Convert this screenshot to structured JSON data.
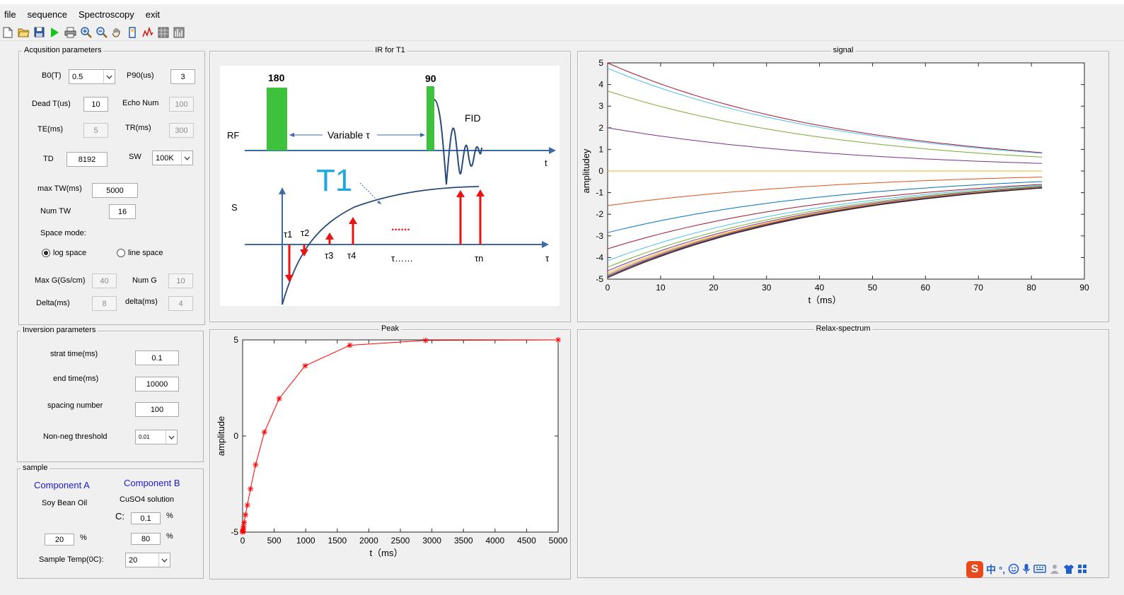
{
  "window": {
    "title": ""
  },
  "menu": [
    "file",
    "sequence",
    "Spectroscopy",
    "exit"
  ],
  "toolbar": [
    "new-icon",
    "open-icon",
    "save-icon",
    "run-icon",
    "print-icon",
    "zoom-in-icon",
    "zoom-out-icon",
    "pan-icon",
    "datacursor-icon",
    "peak-icon",
    "grid-icon",
    "spectrum-icon"
  ],
  "acq": {
    "title": "Acqusition parameters",
    "b0_label": "B0(T)",
    "b0_value": "0.5",
    "p90_label": "P90(us)",
    "p90_value": "3",
    "dead_label": "Dead T(us)",
    "dead_value": "10",
    "echo_label": "Echo Num",
    "echo_value": "100",
    "te_label": "TE(ms)",
    "te_value": "5",
    "tr_label": "TR(ms)",
    "tr_value": "300",
    "td_label": "TD",
    "td_value": "8192",
    "sw_label": "SW",
    "sw_value": "100K",
    "maxtw_label": "max TW(ms)",
    "maxtw_value": "5000",
    "numtw_label": "Num TW",
    "numtw_value": "16",
    "space_label": "Space mode:",
    "log_label": "log space",
    "line_label": "line space",
    "maxg_label": "Max G(Gs/cm)",
    "maxg_value": "40",
    "numg_label": "Num G",
    "numg_value": "10",
    "Delta_label": "Delta(ms)",
    "Delta_value": "8",
    "delta_label": "delta(ms)",
    "delta_value": "4"
  },
  "inv": {
    "title": "Inversion parameters",
    "start_label": "strat time(ms)",
    "start_value": "0.1",
    "end_label": "end time(ms)",
    "end_value": "10000",
    "spacing_label": "spacing number",
    "spacing_value": "100",
    "thresh_label": "Non-neg threshold",
    "thresh_value": "0.01"
  },
  "sample": {
    "title": "sample",
    "compA": "Component A",
    "compB": "Component B",
    "nameA": "Soy Bean Oil",
    "nameB": "CuSO4 solution",
    "c_label": "C:",
    "c_value": "0.1",
    "c_unit": "%",
    "pctA_value": "20",
    "pctA_unit": "%",
    "pctB_value": "80",
    "pctB_unit": "%",
    "temp_label": "Sample Temp(0C):",
    "temp_value": "20"
  },
  "diagram": {
    "title": "IR for T1",
    "p180": "180",
    "p90": "90",
    "rf": "RF",
    "variable": "Variable τ",
    "fid": "FID",
    "t_axis": "t",
    "s_label": "S",
    "t1": "T1",
    "tau1": "τ1",
    "tau2": "τ2",
    "tau3": "τ3",
    "tau4": "τ4",
    "tau_dots": "τ……",
    "tau_n": "τn",
    "tau_axis": "τ",
    "dots": "......",
    "colors": {
      "pulse": "#3ec23e",
      "axis": "#3d6aa3",
      "arrow": "#ee1111",
      "t1": "#1ea7e0",
      "dots": "#ee1111"
    }
  },
  "signal": {
    "title": "signal",
    "chart_data": {
      "type": "line",
      "title": "",
      "xlabel": "t（ms）",
      "ylabel": "amplitudey",
      "xlim": [
        0,
        90
      ],
      "ylim": [
        -5,
        5
      ],
      "xticks": [
        0,
        10,
        20,
        30,
        40,
        50,
        60,
        70,
        80,
        90
      ],
      "yticks": [
        -5,
        -4,
        -3,
        -2,
        -1,
        0,
        1,
        2,
        3,
        4,
        5
      ],
      "x_range": [
        0,
        82
      ],
      "series": [
        {
          "y0": 5,
          "y_end": 0.85,
          "color": "#a2142f"
        },
        {
          "y0": 4.75,
          "y_end": 0.82,
          "color": "#4dbeee"
        },
        {
          "y0": 3.7,
          "y_end": 0.64,
          "color": "#77ac30"
        },
        {
          "y0": 2.0,
          "y_end": 0.35,
          "color": "#7e2f8e"
        },
        {
          "y0": 0.0,
          "y_end": 0.0,
          "color": "#edb120"
        },
        {
          "y0": -1.6,
          "y_end": -0.28,
          "color": "#d95319"
        },
        {
          "y0": -2.85,
          "y_end": -0.49,
          "color": "#0072bd"
        },
        {
          "y0": -3.6,
          "y_end": -0.62,
          "color": "#a2142f"
        },
        {
          "y0": -4.15,
          "y_end": -0.66,
          "color": "#4dbeee"
        },
        {
          "y0": -4.45,
          "y_end": -0.7,
          "color": "#77ac30"
        },
        {
          "y0": -4.62,
          "y_end": -0.73,
          "color": "#7e2f8e"
        },
        {
          "y0": -4.72,
          "y_end": -0.75,
          "color": "#edb120"
        },
        {
          "y0": -4.8,
          "y_end": -0.76,
          "color": "#d95319"
        },
        {
          "y0": -4.86,
          "y_end": -0.77,
          "color": "#0072bd"
        },
        {
          "y0": -4.9,
          "y_end": -0.78,
          "color": "#a2142f"
        },
        {
          "y0": -4.94,
          "y_end": -0.79,
          "color": "#222222"
        }
      ]
    }
  },
  "peak": {
    "title": "Peak",
    "chart_data": {
      "type": "line",
      "title": "",
      "xlabel": "t（ms）",
      "ylabel": "amplitude",
      "xlim": [
        0,
        5000
      ],
      "ylim": [
        -5,
        5
      ],
      "xticks": [
        0,
        500,
        1000,
        1500,
        2000,
        2500,
        3000,
        3500,
        4000,
        4500,
        5000
      ],
      "yticks": [
        -5,
        0,
        5
      ],
      "color": "#ff0000",
      "x": [
        1,
        3,
        5,
        9,
        15,
        25,
        45,
        75,
        125,
        205,
        345,
        580,
        990,
        1700,
        2900,
        5000
      ],
      "y": [
        -4.99,
        -4.97,
        -4.93,
        -4.86,
        -4.72,
        -4.5,
        -4.1,
        -3.6,
        -2.75,
        -1.5,
        0.2,
        1.95,
        3.65,
        4.72,
        4.97,
        5.0
      ]
    }
  },
  "relax": {
    "title": "Relax-spectrum"
  },
  "tray": [
    "ime-s-icon",
    "中",
    "°,",
    "smile-icon",
    "mic-icon",
    "keyboard-icon",
    "user-icon",
    "shirt-icon",
    "grid-icon"
  ]
}
